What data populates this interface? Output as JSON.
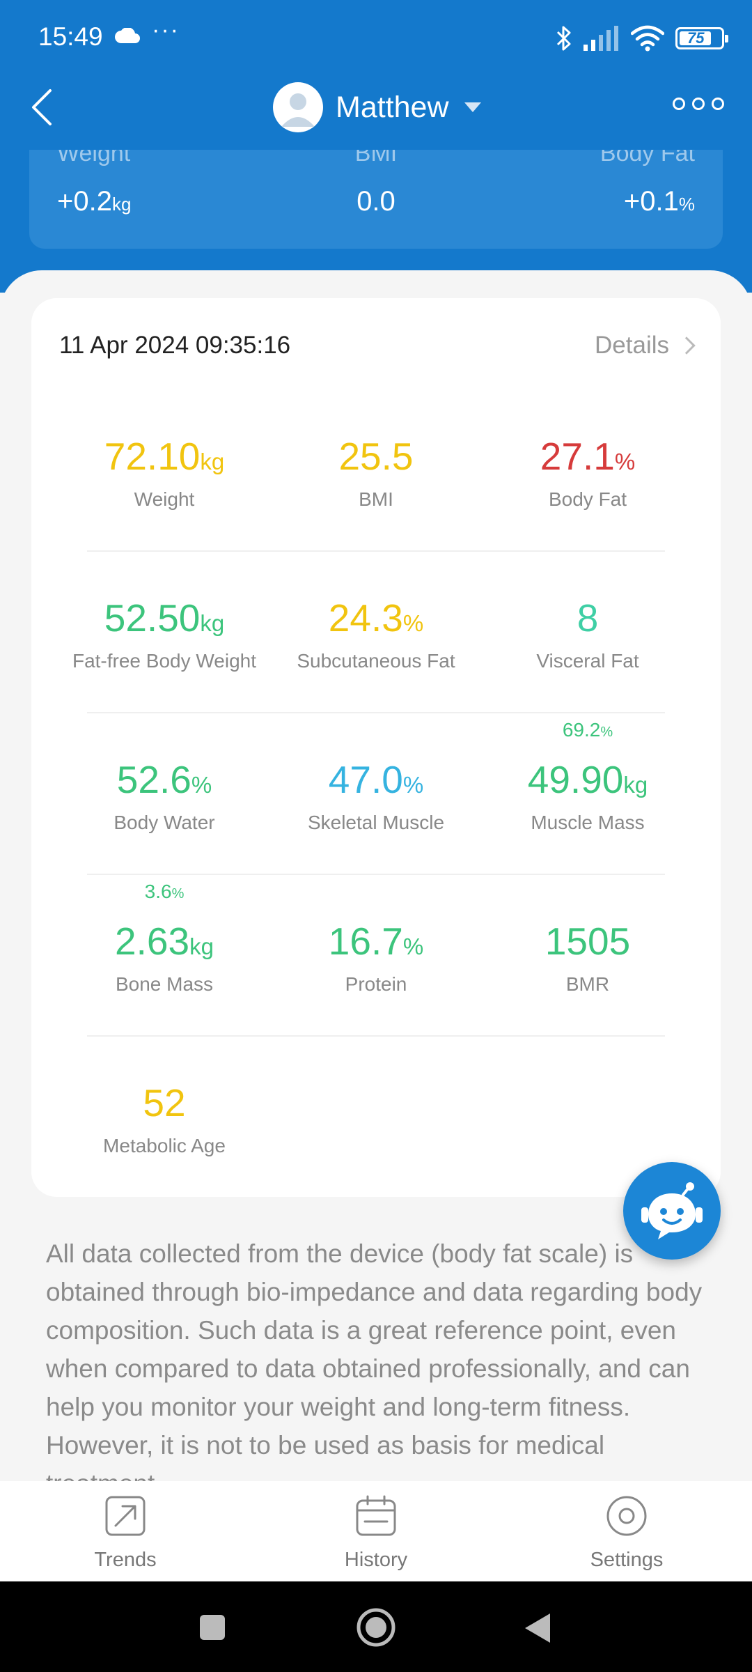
{
  "status_bar": {
    "time": "15:49",
    "dots": "···",
    "battery": "75"
  },
  "nav": {
    "profile_name": "Matthew"
  },
  "summary": {
    "weight_label": "Weight",
    "weight_value": "+0.2",
    "weight_unit": "kg",
    "bmi_label": "BMI",
    "bmi_value": "0.0",
    "bodyfat_label": "Body Fat",
    "bodyfat_value": "+0.1",
    "bodyfat_unit": "%"
  },
  "record": {
    "datetime": "11 Apr 2024 09:35:16",
    "details_label": "Details"
  },
  "metrics": {
    "weight": {
      "value": "72.10",
      "unit": "kg",
      "label": "Weight",
      "color": "#f1c40f"
    },
    "bmi": {
      "value": "25.5",
      "unit": "",
      "label": "BMI",
      "color": "#f1c40f"
    },
    "body_fat": {
      "value": "27.1",
      "unit": "%",
      "label": "Body Fat",
      "color": "#d63b3b"
    },
    "fat_free_weight": {
      "value": "52.50",
      "unit": "kg",
      "label": "Fat-free Body Weight",
      "color": "#3cc47c"
    },
    "subcutaneous_fat": {
      "value": "24.3",
      "unit": "%",
      "label": "Subcutaneous Fat",
      "color": "#f1c40f"
    },
    "visceral_fat": {
      "value": "8",
      "unit": "",
      "label": "Visceral Fat",
      "color": "#3fcfa5"
    },
    "body_water": {
      "value": "52.6",
      "unit": "%",
      "label": "Body Water",
      "color": "#3cc47c"
    },
    "skeletal_muscle": {
      "value": "47.0",
      "unit": "%",
      "label": "Skeletal Muscle",
      "color": "#35b3e0"
    },
    "muscle_mass": {
      "value": "49.90",
      "unit": "kg",
      "label": "Muscle Mass",
      "sub_value": "69.2",
      "sub_unit": "%",
      "color": "#3cc47c"
    },
    "bone_mass": {
      "value": "2.63",
      "unit": "kg",
      "label": "Bone Mass",
      "sub_value": "3.6",
      "sub_unit": "%",
      "color": "#3cc47c"
    },
    "protein": {
      "value": "16.7",
      "unit": "%",
      "label": "Protein",
      "color": "#3cc47c"
    },
    "bmr": {
      "value": "1505",
      "unit": "",
      "label": "BMR",
      "color": "#3cc47c"
    },
    "metabolic_age": {
      "value": "52",
      "unit": "",
      "label": "Metabolic Age",
      "color": "#f1c40f"
    }
  },
  "disclaimer": "All data collected from the device (body fat scale) is obtained through bio-impedance and data regarding body composition. Such data is a great reference point, even when compared to data obtained professionally, and can help you monitor your weight and long-term fitness. However, it is not to be used as basis for medical treatment.",
  "tabs": {
    "trends": "Trends",
    "history": "History",
    "settings": "Settings"
  },
  "icons": [
    "cloud-icon",
    "bluetooth-icon",
    "signal-icon",
    "wifi-icon",
    "battery-icon",
    "back-arrow-icon",
    "avatar-icon",
    "more-icon",
    "chevron-right-icon",
    "chatbot-icon",
    "trends-icon",
    "calendar-icon",
    "settings-icon",
    "square-icon",
    "home-circle-icon",
    "back-triangle-icon"
  ]
}
